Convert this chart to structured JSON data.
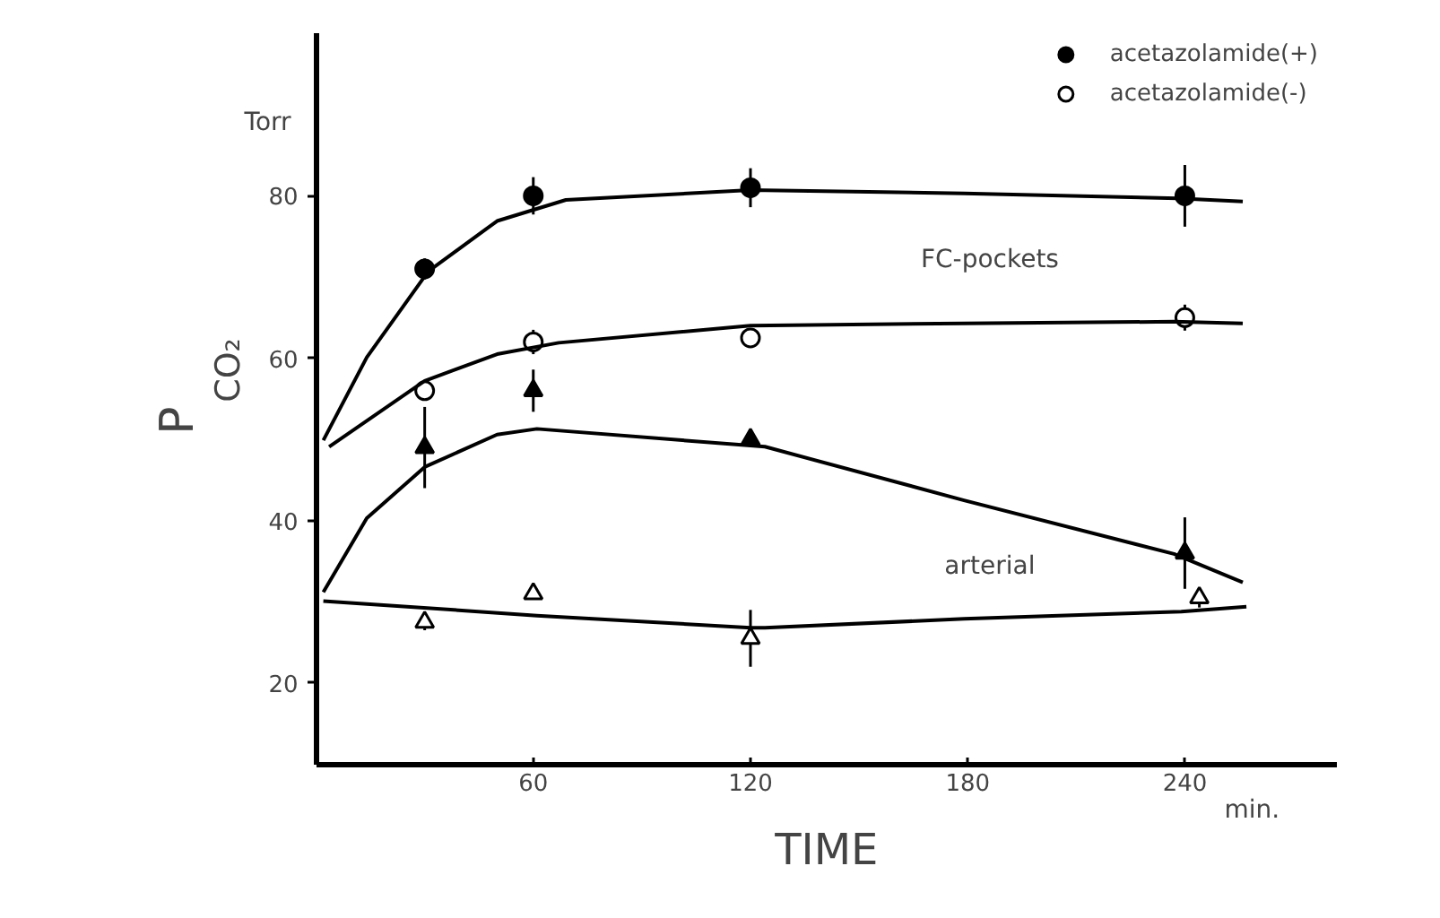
{
  "chart_data": {
    "type": "scatter",
    "xlabel": "TIME",
    "ylabel": "P$_{CO₂}$",
    "xlim": [
      0,
      282
    ],
    "ylim": [
      10,
      100
    ],
    "xticks": [
      60,
      120,
      180,
      240
    ],
    "yticks": [
      20,
      40,
      60,
      80
    ],
    "grid": false,
    "legend": "top right",
    "line_style": "solid",
    "annotations": [
      "Torr",
      "min.",
      "FC-pockets",
      "arterial"
    ],
    "series": [
      {
        "name": "acetazolamide(+)",
        "color": "#000000",
        "marker": "circle",
        "x": [
          30,
          60,
          120,
          240
        ],
        "values": [
          71,
          80,
          81,
          80
        ],
        "errors": [
          1.3,
          2.3,
          2.4,
          3.8
        ]
      },
      {
        "color": "#000000",
        "marker": "triangle",
        "x": [
          30,
          60,
          120,
          240
        ],
        "values": [
          49,
          56,
          50,
          36
        ],
        "errors": [
          5,
          2.6,
          null,
          4.4
        ]
      },
      {
        "name": "acetazolamide(-)",
        "color": "#ffffff",
        "marker": "circle",
        "x": [
          30,
          60,
          120,
          240
        ],
        "values": [
          56,
          62,
          62.5,
          65
        ],
        "errors": [
          1,
          1.5,
          1,
          1.6
        ]
      },
      {
        "color": "#ffffff",
        "marker": "triangle",
        "x": [
          30,
          60,
          120,
          244
        ],
        "values": [
          27.5,
          31,
          25.5,
          30.5
        ],
        "errors": [
          1,
          null,
          3.5,
          1.2
        ]
      },
      {
        "type": "line",
        "color": "#000000",
        "x": [
          2,
          14,
          31,
          50,
          69,
          120,
          179,
          238,
          256
        ],
        "values": [
          49.9,
          60.1,
          70.7,
          76.9,
          79.5,
          80.7,
          80.3,
          79.7,
          79.3
        ]
      },
      {
        "type": "line",
        "color": "#000000",
        "x": [
          3.6,
          30,
          50,
          67,
          120,
          179,
          237,
          256
        ],
        "values": [
          49.1,
          57.2,
          60.5,
          61.9,
          64.0,
          64.3,
          64.5,
          64.3
        ]
      },
      {
        "type": "line",
        "color": "#000000",
        "x": [
          2,
          14,
          30,
          50,
          61,
          124,
          179,
          237,
          256
        ],
        "values": [
          31.2,
          40.3,
          46.6,
          50.6,
          51.3,
          49.1,
          42.5,
          35.9,
          32.4
        ]
      },
      {
        "type": "line",
        "color": "#000000",
        "x": [
          2,
          61,
          120,
          124,
          179,
          239,
          257
        ],
        "values": [
          30.1,
          28.3,
          26.8,
          26.8,
          27.9,
          28.8,
          29.4
        ]
      }
    ]
  }
}
